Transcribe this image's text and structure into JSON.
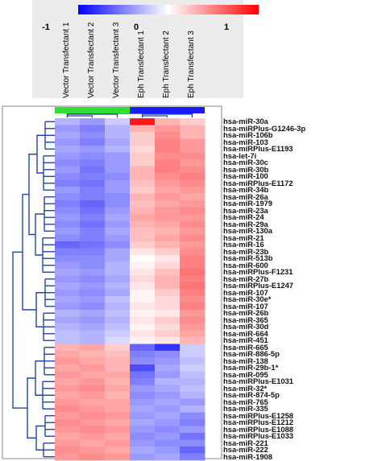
{
  "chart_data": {
    "type": "heatmap",
    "title": "",
    "color_scale": {
      "ticks": [
        "-1",
        "0",
        "1"
      ],
      "min": -1,
      "max": 1,
      "colors": {
        "low": "#0000ff",
        "mid": "#ffffff",
        "high": "#ff0000"
      }
    },
    "columns": [
      "Vector Transfectant 1",
      "Vector Transfectant 2",
      "Vector Transfectant 3",
      "Eph Transfectant 1",
      "Eph Transfectant 2",
      "Eph Transfectant 3"
    ],
    "column_groups": [
      {
        "columns": [
          0,
          1,
          2
        ],
        "color": "#33dd33"
      },
      {
        "columns": [
          3,
          4,
          5
        ],
        "color": "#1a1aff"
      }
    ],
    "rows": [
      "hsa-miR-30a",
      "hsa-miRPlus-G1246-3p",
      "hsa-miR-106b",
      "hsa-miR-103",
      "hsa-miRPlus-E1193",
      "hsa-let-7i",
      "hsa-miR-30c",
      "hsa-miR-30b",
      "hsa-miR-100",
      "hsa-miRPlus-E1172",
      "hsa-miR-34b",
      "hsa-miR-26a",
      "hsa-miR-1979",
      "hsa-miR-23a",
      "hsa-miR-24",
      "hsa-miR-29a",
      "hsa-miR-130a",
      "hsa-miR-21",
      "hsa-miR-16",
      "hsa-miR-23b",
      "hsa-miR-513b",
      "hsa-miR-600",
      "hsa-miRPlus-F1231",
      "hsa-miR-27b",
      "hsa-miRPlus-E1247",
      "hsa-miR-107",
      "hsa-miR-30e*",
      "hsa-miR-107",
      "hsa-miR-26b",
      "hsa-miR-365",
      "hsa-miR-30d",
      "hsa-miR-664",
      "hsa-miR-451",
      "hsa-miR-665",
      "hsa-miR-886-5p",
      "hsa-miR-138",
      "hsa-miR-29b-1*",
      "hsa-miR-095",
      "hsa-miRPlus-E1031",
      "hsa-miR-32*",
      "hsa-miR-874-5p",
      "hsa-miR-765",
      "hsa-miR-335",
      "hsa-miRPlus-E1258",
      "hsa-miRPlus-E1212",
      "hsa-miRPlus-E1088",
      "hsa-miRPlus-E1033",
      "hsa-miR-221",
      "hsa-miR-222",
      "hsa-miR-1908"
    ],
    "values": [
      [
        -0.3,
        -0.4,
        -0.2,
        0.9,
        0.3,
        0.2
      ],
      [
        -0.4,
        -0.5,
        -0.3,
        0.3,
        0.4,
        0.3
      ],
      [
        -0.35,
        -0.45,
        -0.3,
        0.2,
        0.45,
        0.3
      ],
      [
        -0.4,
        -0.5,
        -0.35,
        0.2,
        0.5,
        0.4
      ],
      [
        -0.35,
        -0.4,
        -0.3,
        0.15,
        0.5,
        0.4
      ],
      [
        -0.4,
        -0.45,
        -0.4,
        0.2,
        0.45,
        0.45
      ],
      [
        -0.45,
        -0.5,
        -0.4,
        0.2,
        0.5,
        0.4
      ],
      [
        -0.4,
        -0.55,
        -0.4,
        0.3,
        0.5,
        0.45
      ],
      [
        -0.45,
        -0.5,
        -0.45,
        0.3,
        0.45,
        0.5
      ],
      [
        -0.5,
        -0.55,
        -0.4,
        0.25,
        0.4,
        0.45
      ],
      [
        -0.4,
        -0.5,
        -0.4,
        0.2,
        0.35,
        0.4
      ],
      [
        -0.45,
        -0.5,
        -0.45,
        0.3,
        0.4,
        0.35
      ],
      [
        -0.5,
        -0.6,
        -0.45,
        0.25,
        0.35,
        0.4
      ],
      [
        -0.45,
        -0.55,
        -0.4,
        0.3,
        0.4,
        0.45
      ],
      [
        -0.4,
        -0.5,
        -0.35,
        0.35,
        0.4,
        0.4
      ],
      [
        -0.45,
        -0.55,
        -0.4,
        0.3,
        0.35,
        0.45
      ],
      [
        -0.4,
        -0.5,
        -0.35,
        0.25,
        0.3,
        0.4
      ],
      [
        -0.45,
        -0.5,
        -0.4,
        0.25,
        0.35,
        0.45
      ],
      [
        -0.6,
        -0.55,
        -0.45,
        0.2,
        0.3,
        0.4
      ],
      [
        -0.5,
        -0.5,
        -0.35,
        0.1,
        0.2,
        0.45
      ],
      [
        -0.45,
        -0.45,
        -0.35,
        0.0,
        0.1,
        0.5
      ],
      [
        -0.4,
        -0.45,
        -0.3,
        0.05,
        0.15,
        0.5
      ],
      [
        -0.35,
        -0.4,
        -0.3,
        0.1,
        0.25,
        0.55
      ],
      [
        -0.4,
        -0.45,
        -0.35,
        0.15,
        0.3,
        0.5
      ],
      [
        -0.35,
        -0.4,
        -0.3,
        0.1,
        0.3,
        0.55
      ],
      [
        -0.4,
        -0.45,
        -0.35,
        0.05,
        0.2,
        0.5
      ],
      [
        -0.35,
        -0.4,
        -0.25,
        0.05,
        0.15,
        0.45
      ],
      [
        -0.4,
        -0.45,
        -0.3,
        0.1,
        0.15,
        0.5
      ],
      [
        -0.3,
        -0.35,
        -0.25,
        0.05,
        0.1,
        0.4
      ],
      [
        -0.35,
        -0.4,
        -0.3,
        0.1,
        0.2,
        0.45
      ],
      [
        -0.3,
        -0.35,
        -0.25,
        0.05,
        0.15,
        0.4
      ],
      [
        -0.25,
        -0.3,
        -0.2,
        0.1,
        0.2,
        0.35
      ],
      [
        -0.25,
        -0.3,
        -0.15,
        0.05,
        0.1,
        0.3
      ],
      [
        0.3,
        0.35,
        0.2,
        -0.6,
        -0.8,
        -0.2
      ],
      [
        0.35,
        0.3,
        0.25,
        -0.5,
        -0.45,
        -0.2
      ],
      [
        0.4,
        0.35,
        0.3,
        -0.45,
        -0.4,
        -0.25
      ],
      [
        0.35,
        0.4,
        0.3,
        -0.7,
        -0.35,
        -0.2
      ],
      [
        0.4,
        0.35,
        0.35,
        -0.55,
        -0.4,
        -0.25
      ],
      [
        0.35,
        0.4,
        0.3,
        -0.5,
        -0.3,
        -0.3
      ],
      [
        0.4,
        0.45,
        0.35,
        -0.4,
        -0.35,
        -0.25
      ],
      [
        0.35,
        0.4,
        0.3,
        -0.45,
        -0.4,
        -0.3
      ],
      [
        0.4,
        0.35,
        0.35,
        -0.4,
        -0.35,
        -0.4
      ],
      [
        0.45,
        0.4,
        0.35,
        -0.35,
        -0.4,
        -0.3
      ],
      [
        0.4,
        0.45,
        0.4,
        -0.4,
        -0.35,
        -0.45
      ],
      [
        0.45,
        0.4,
        0.35,
        -0.35,
        -0.4,
        -0.5
      ],
      [
        0.4,
        0.45,
        0.4,
        -0.4,
        -0.45,
        -0.4
      ],
      [
        0.35,
        0.4,
        0.35,
        -0.45,
        -0.4,
        -0.55
      ],
      [
        0.4,
        0.35,
        0.4,
        -0.4,
        -0.45,
        -0.45
      ],
      [
        0.45,
        0.4,
        0.35,
        -0.35,
        -0.4,
        -0.6
      ],
      [
        0.4,
        0.45,
        0.4,
        -0.4,
        -0.35,
        -0.5
      ]
    ]
  }
}
